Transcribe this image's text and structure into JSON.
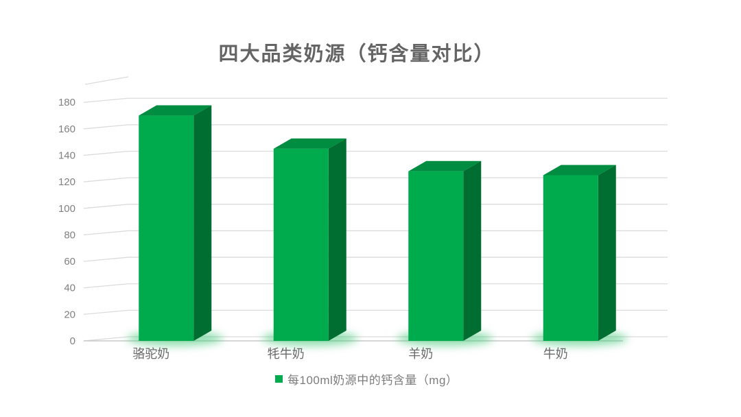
{
  "chart_data": {
    "type": "bar",
    "variant": "3d-column",
    "title": "四大品类奶源（钙含量对比）",
    "categories": [
      "骆驼奶",
      "牦牛奶",
      "羊奶",
      "牛奶"
    ],
    "series": [
      {
        "name": "每100ml奶源中的钙含量（mg）",
        "values": [
          170,
          145,
          128,
          125
        ]
      }
    ],
    "xlabel": "",
    "ylabel": "",
    "ylim": [
      0,
      180
    ],
    "yticks": [
      0,
      20,
      40,
      60,
      80,
      100,
      120,
      140,
      160,
      180
    ],
    "grid": true,
    "legend_position": "bottom",
    "colors": {
      "bar_front": "#00AB4E",
      "bar_top": "#008C41",
      "bar_side": "#006E31",
      "bar_glow": "#4ECB80",
      "gridline": "#DBDBDB",
      "axis_line": "#C9C9C9",
      "wall_edge": "#DBDBDB",
      "title_text": "#646464",
      "tick_text": "#808080",
      "category_text": "#696969",
      "legend_text": "#7C7C7C"
    }
  }
}
